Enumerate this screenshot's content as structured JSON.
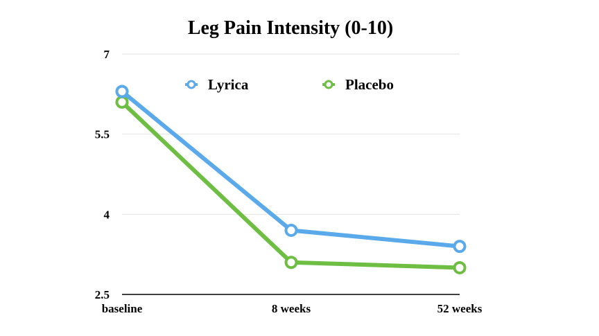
{
  "chart_data": {
    "type": "line",
    "title": "Leg Pain Intensity (0-10)",
    "xlabel": "",
    "ylabel": "",
    "categories": [
      "baseline",
      "8 weeks",
      "52 weeks"
    ],
    "ylim": [
      2.5,
      7
    ],
    "yticks": [
      "2.5",
      "4",
      "5.5",
      "7"
    ],
    "grid": true,
    "legend_position": "top",
    "series": [
      {
        "name": "Lyrica",
        "color": "#5aa9ea",
        "values": [
          6.3,
          3.7,
          3.4
        ]
      },
      {
        "name": "Placebo",
        "color": "#6fbe44",
        "values": [
          6.1,
          3.1,
          3.0
        ]
      }
    ]
  }
}
